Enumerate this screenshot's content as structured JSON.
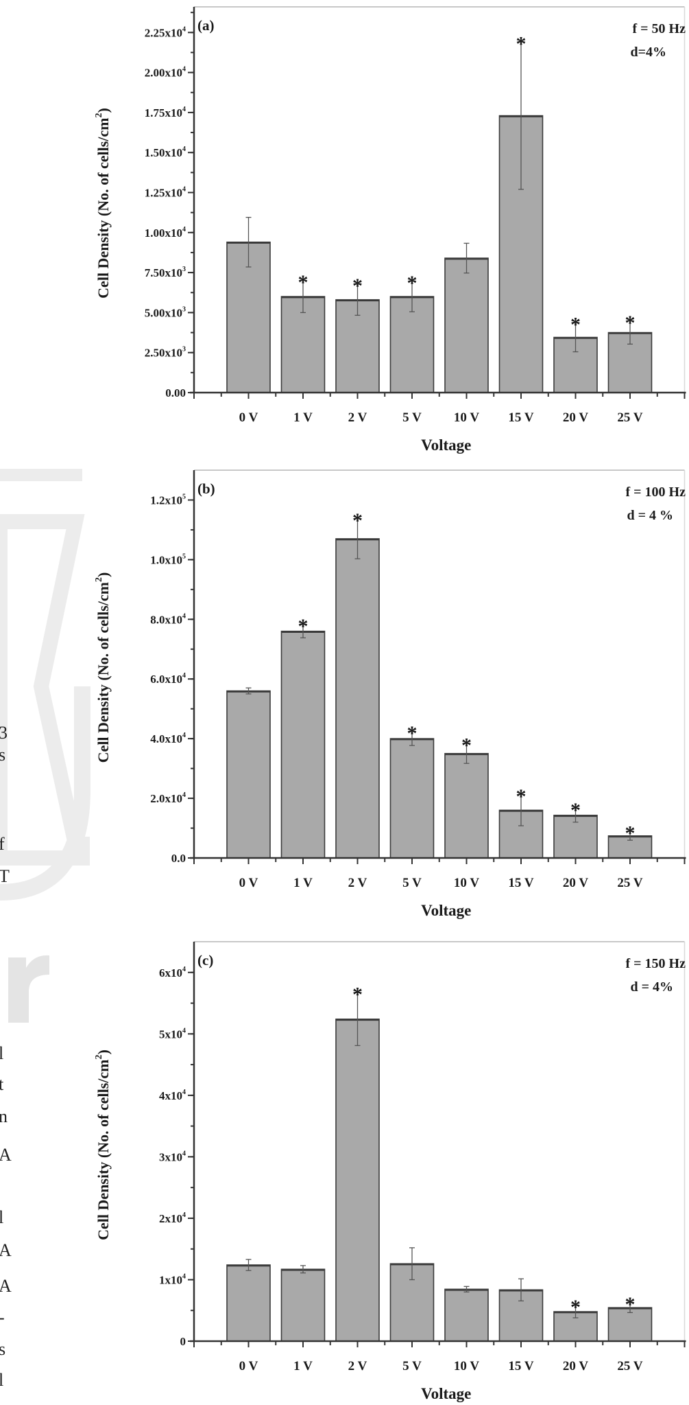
{
  "margin_fragments": [
    "3",
    "s",
    "f",
    "T",
    "l",
    "t",
    "n",
    "A",
    "l",
    "A",
    "A",
    "-",
    "s",
    "l"
  ],
  "colors": {
    "bar_fill": "#a9a9a9",
    "bar_stroke": "#3a3a3a",
    "axis": "#333333",
    "watermark": "#ececec"
  },
  "chart_data": [
    {
      "type": "bar",
      "panel_label": "(a)",
      "annotations": [
        "f = 50 Hz",
        "d=4%"
      ],
      "categories": [
        "0 V",
        "1 V",
        "2 V",
        "5 V",
        "10 V",
        "15 V",
        "20 V",
        "25 V"
      ],
      "values": [
        9400,
        6000,
        5800,
        6000,
        8400,
        17300,
        3450,
        3750
      ],
      "errors": [
        1550,
        1000,
        970,
        950,
        930,
        4600,
        900,
        720
      ],
      "significant": [
        false,
        true,
        true,
        true,
        false,
        true,
        true,
        true
      ],
      "asterisk": "*",
      "xlabel": "Voltage",
      "ylabel": {
        "main": "Cell Density (No. of cells/cm",
        "sup": "2",
        "end": ")"
      },
      "ylim": [
        0,
        24100
      ],
      "yticks": [
        {
          "value": 0,
          "base": "0.00",
          "exp": ""
        },
        {
          "value": 2500,
          "base": "2.50x10",
          "exp": "3"
        },
        {
          "value": 5000,
          "base": "5.00x10",
          "exp": "3"
        },
        {
          "value": 7500,
          "base": "7.50x10",
          "exp": "3"
        },
        {
          "value": 10000,
          "base": "1.00x10",
          "exp": "4"
        },
        {
          "value": 12500,
          "base": "1.25x10",
          "exp": "4"
        },
        {
          "value": 15000,
          "base": "1.50x10",
          "exp": "4"
        },
        {
          "value": 17500,
          "base": "1.75x10",
          "exp": "4"
        },
        {
          "value": 20000,
          "base": "2.00x10",
          "exp": "4"
        },
        {
          "value": 22500,
          "base": "2.25x10",
          "exp": "4"
        }
      ],
      "minor_step": 1250,
      "grid": false
    },
    {
      "type": "bar",
      "panel_label": "(b)",
      "annotations": [
        "f = 100 Hz",
        "d = 4 %"
      ],
      "categories": [
        "0 V",
        "1 V",
        "2 V",
        "5 V",
        "10 V",
        "15 V",
        "20 V",
        "25 V"
      ],
      "values": [
        56000,
        76000,
        107000,
        40000,
        35000,
        16000,
        14300,
        7400
      ],
      "errors": [
        1000,
        2200,
        6700,
        2300,
        3300,
        5200,
        2300,
        1450
      ],
      "significant": [
        false,
        true,
        true,
        true,
        true,
        true,
        true,
        true
      ],
      "asterisk": "*",
      "xlabel": "Voltage",
      "ylabel": {
        "main": "Cell Density (No. of cells/cm",
        "sup": "2",
        "end": ")"
      },
      "ylim": [
        0,
        130000
      ],
      "yticks": [
        {
          "value": 0,
          "base": "0.0",
          "exp": ""
        },
        {
          "value": 20000,
          "base": "2.0x10",
          "exp": "4"
        },
        {
          "value": 40000,
          "base": "4.0x10",
          "exp": "4"
        },
        {
          "value": 60000,
          "base": "6.0x10",
          "exp": "4"
        },
        {
          "value": 80000,
          "base": "8.0x10",
          "exp": "4"
        },
        {
          "value": 100000,
          "base": "1.0x10",
          "exp": "5"
        },
        {
          "value": 120000,
          "base": "1.2x10",
          "exp": "5"
        }
      ],
      "minor_step": 10000,
      "grid": false
    },
    {
      "type": "bar",
      "panel_label": "(c)",
      "annotations": [
        "f = 150 Hz",
        "d = 4%"
      ],
      "categories": [
        "0 V",
        "1 V",
        "2 V",
        "5 V",
        "10 V",
        "15 V",
        "20 V",
        "25 V"
      ],
      "values": [
        12400,
        11700,
        52400,
        12600,
        8450,
        8350,
        4800,
        5450
      ],
      "errors": [
        900,
        600,
        4300,
        2600,
        450,
        1800,
        1000,
        800
      ],
      "significant": [
        false,
        false,
        true,
        false,
        false,
        false,
        true,
        true
      ],
      "asterisk": "*",
      "xlabel": "Voltage",
      "ylabel": {
        "main": "Cell Density (No. of cells/cm",
        "sup": "2",
        "end": ")"
      },
      "ylim": [
        0,
        65000
      ],
      "yticks": [
        {
          "value": 0,
          "base": "0",
          "exp": ""
        },
        {
          "value": 10000,
          "base": "1x10",
          "exp": "4"
        },
        {
          "value": 20000,
          "base": "2x10",
          "exp": "4"
        },
        {
          "value": 30000,
          "base": "3x10",
          "exp": "4"
        },
        {
          "value": 40000,
          "base": "4x10",
          "exp": "4"
        },
        {
          "value": 50000,
          "base": "5x10",
          "exp": "4"
        },
        {
          "value": 60000,
          "base": "6x10",
          "exp": "4"
        }
      ],
      "minor_step": 5000,
      "grid": false
    }
  ]
}
